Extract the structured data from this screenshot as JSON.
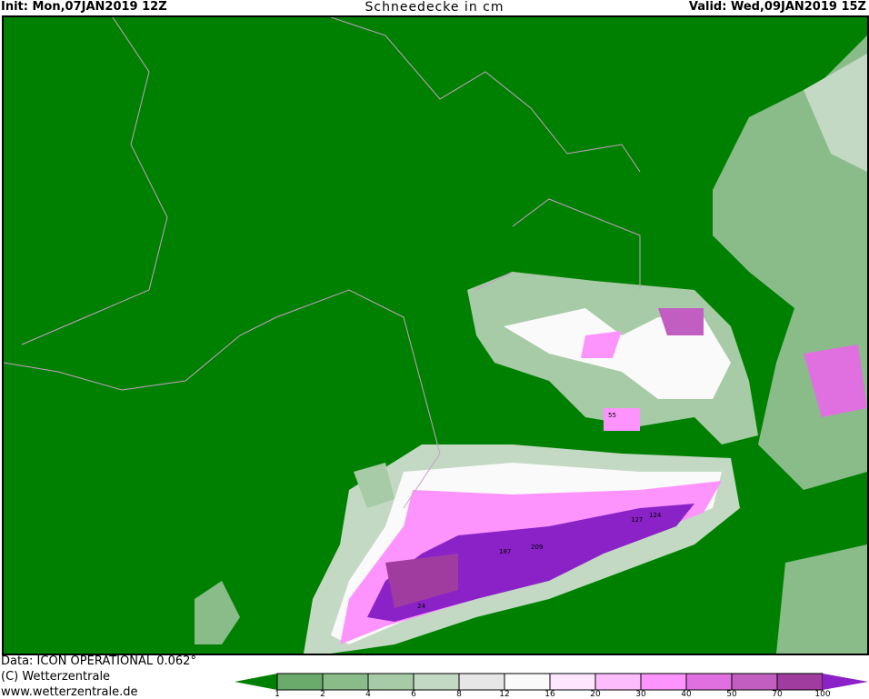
{
  "header": {
    "init": "Init: Mon,07JAN2019 12Z",
    "title": "Schneedecke in cm",
    "valid": "Valid: Wed,09JAN2019 15Z"
  },
  "footer": {
    "data_source": "Data: ICON OPERATIONAL 0.062°",
    "copyright": "(C) Wetterzentrale",
    "website": "www.wetterzentrale.de"
  },
  "legend": {
    "below_color": "#008000",
    "above_color": "#8a22c8",
    "boxes": [
      {
        "from": "1",
        "color": "#6aaa6a"
      },
      {
        "from": "2",
        "color": "#8abc8a"
      },
      {
        "from": "4",
        "color": "#a6cba6"
      },
      {
        "from": "6",
        "color": "#c3d9c3"
      },
      {
        "from": "8",
        "color": "#e6e6e6"
      },
      {
        "from": "12",
        "color": "#fafafa"
      },
      {
        "from": "16",
        "color": "#ffe6ff"
      },
      {
        "from": "20",
        "color": "#fdbdfd"
      },
      {
        "from": "30",
        "color": "#fd94fd"
      },
      {
        "from": "40",
        "color": "#e070e0"
      },
      {
        "from": "50",
        "color": "#c25ec2"
      },
      {
        "from": "70",
        "color": "#a03ca0"
      }
    ],
    "last_label": "100"
  },
  "map": {
    "background_color": "#008000",
    "border_color": "#c8a0c8",
    "sample_values": [
      {
        "label": "187"
      },
      {
        "label": "209"
      },
      {
        "label": "127"
      },
      {
        "label": "124"
      },
      {
        "label": "55"
      },
      {
        "label": "24"
      }
    ]
  }
}
